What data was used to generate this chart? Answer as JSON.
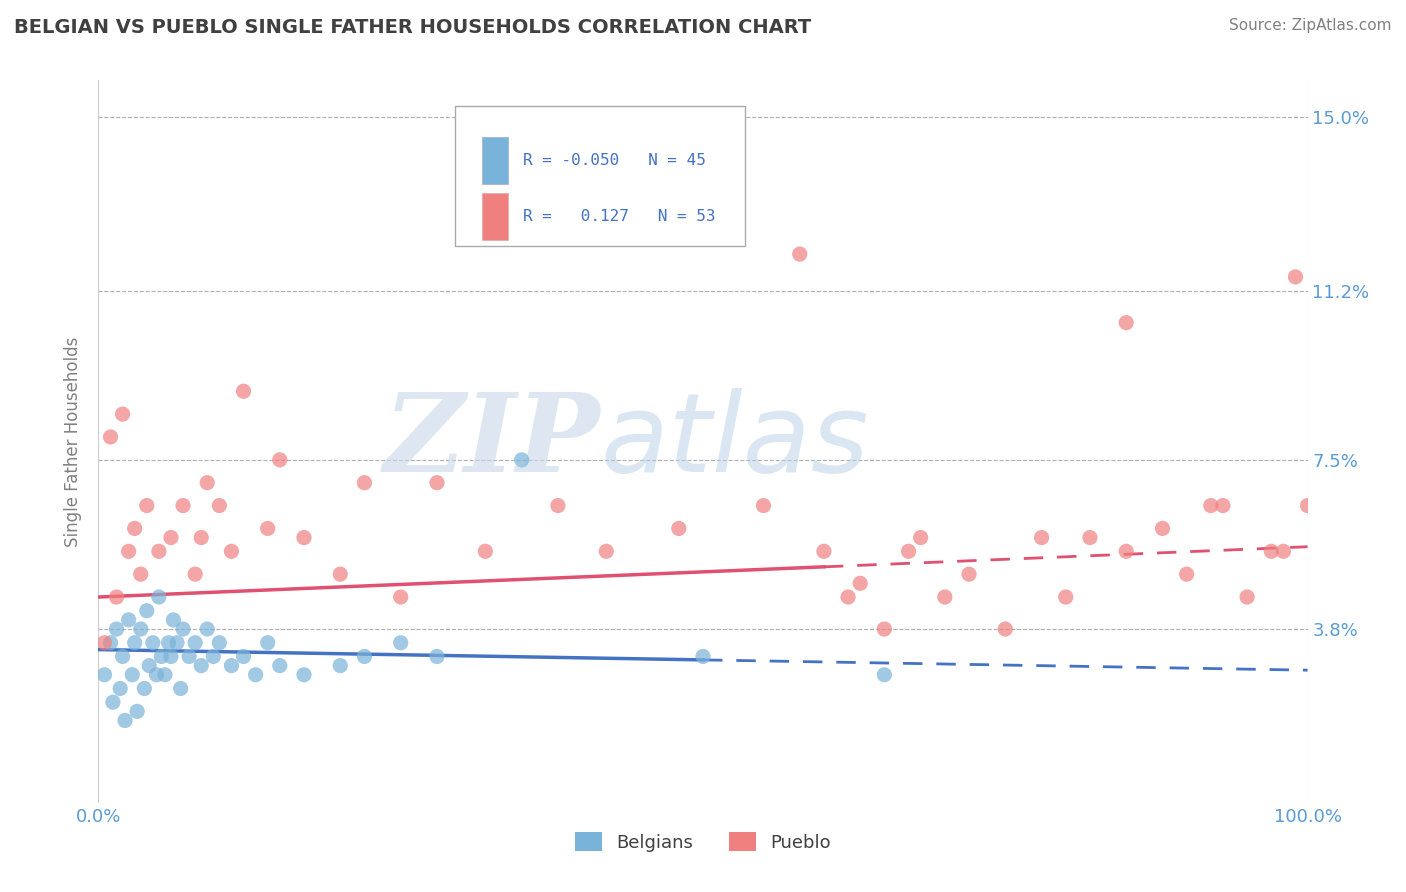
{
  "title": "BELGIAN VS PUEBLO SINGLE FATHER HOUSEHOLDS CORRELATION CHART",
  "source": "Source: ZipAtlas.com",
  "ylabel": "Single Father Households",
  "xlim": [
    0,
    100
  ],
  "ylim": [
    0,
    15.8
  ],
  "yticks": [
    0,
    3.8,
    7.5,
    11.2,
    15.0
  ],
  "ytick_labels": [
    "",
    "3.8%",
    "7.5%",
    "11.2%",
    "15.0%"
  ],
  "background_color": "#ffffff",
  "plot_bg_color": "#ffffff",
  "grid_color": "#b0b0b0",
  "title_color": "#404040",
  "tick_label_color": "#5b9bd5",
  "belgians_color": "#7ab3d9",
  "pueblo_color": "#f08080",
  "belgians_line_color": "#4472c4",
  "pueblo_line_color": "#e05070",
  "belgians_scatter": {
    "x": [
      0.5,
      1.0,
      1.2,
      1.5,
      1.8,
      2.0,
      2.2,
      2.5,
      2.8,
      3.0,
      3.2,
      3.5,
      3.8,
      4.0,
      4.2,
      4.5,
      4.8,
      5.0,
      5.2,
      5.5,
      5.8,
      6.0,
      6.2,
      6.5,
      6.8,
      7.0,
      7.5,
      8.0,
      8.5,
      9.0,
      9.5,
      10.0,
      11.0,
      12.0,
      13.0,
      14.0,
      15.0,
      17.0,
      20.0,
      22.0,
      25.0,
      28.0,
      35.0,
      50.0,
      65.0
    ],
    "y": [
      2.8,
      3.5,
      2.2,
      3.8,
      2.5,
      3.2,
      1.8,
      4.0,
      2.8,
      3.5,
      2.0,
      3.8,
      2.5,
      4.2,
      3.0,
      3.5,
      2.8,
      4.5,
      3.2,
      2.8,
      3.5,
      3.2,
      4.0,
      3.5,
      2.5,
      3.8,
      3.2,
      3.5,
      3.0,
      3.8,
      3.2,
      3.5,
      3.0,
      3.2,
      2.8,
      3.5,
      3.0,
      2.8,
      3.0,
      3.2,
      3.5,
      3.2,
      7.5,
      3.2,
      2.8
    ]
  },
  "pueblo_scatter": {
    "x": [
      0.5,
      1.0,
      1.5,
      2.0,
      2.5,
      3.0,
      3.5,
      4.0,
      5.0,
      6.0,
      7.0,
      8.0,
      8.5,
      9.0,
      10.0,
      11.0,
      12.0,
      14.0,
      15.0,
      17.0,
      20.0,
      22.0,
      25.0,
      28.0,
      32.0,
      38.0,
      42.0,
      48.0,
      55.0,
      60.0,
      62.0,
      65.0,
      68.0,
      70.0,
      72.0,
      75.0,
      78.0,
      80.0,
      82.0,
      85.0,
      88.0,
      90.0,
      92.0,
      93.0,
      95.0,
      97.0,
      98.0,
      99.0,
      100.0,
      58.0,
      63.0,
      67.0,
      85.0
    ],
    "y": [
      3.5,
      8.0,
      4.5,
      8.5,
      5.5,
      6.0,
      5.0,
      6.5,
      5.5,
      5.8,
      6.5,
      5.0,
      5.8,
      7.0,
      6.5,
      5.5,
      9.0,
      6.0,
      7.5,
      5.8,
      5.0,
      7.0,
      4.5,
      7.0,
      5.5,
      6.5,
      5.5,
      6.0,
      6.5,
      5.5,
      4.5,
      3.8,
      5.8,
      4.5,
      5.0,
      3.8,
      5.8,
      4.5,
      5.8,
      5.5,
      6.0,
      5.0,
      6.5,
      6.5,
      4.5,
      5.5,
      5.5,
      11.5,
      6.5,
      12.0,
      4.8,
      5.5,
      10.5
    ]
  },
  "belgians_line": {
    "x0": 0,
    "x1": 100,
    "y0": 3.35,
    "y1": 2.9
  },
  "pueblo_line": {
    "x0": 0,
    "x1": 100,
    "y0": 4.5,
    "y1": 5.6
  },
  "belgian_solid_end": 50,
  "pueblo_solid_end": 60
}
